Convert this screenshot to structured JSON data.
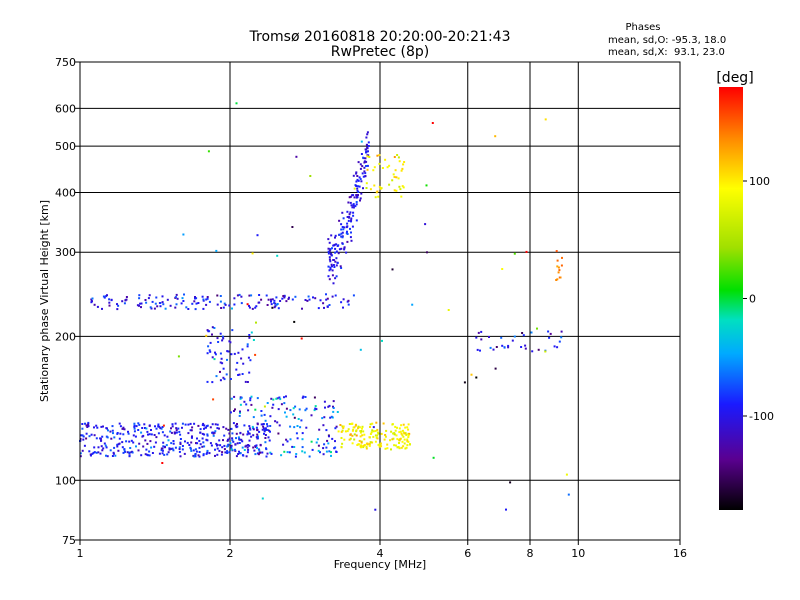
{
  "chart_data": {
    "type": "scatter",
    "title": "Tromsø 20160818 20:20:00-20:21:43",
    "subtitle": "RwPretec (8p)",
    "xlabel": "Frequency [MHz]",
    "ylabel": "Stationary phase Virtual Height [km]",
    "x_scale": "log",
    "y_scale": "log",
    "xlim": [
      1,
      16
    ],
    "ylim": [
      75,
      750
    ],
    "x_ticks": [
      1,
      2,
      4,
      6,
      8,
      10,
      16
    ],
    "x_tick_labels": [
      "1",
      "2",
      "4",
      "6",
      "8",
      "10",
      "16"
    ],
    "y_ticks": [
      75,
      100,
      200,
      300,
      400,
      500,
      600,
      750
    ],
    "y_tick_labels": [
      "75",
      "100",
      "200",
      "300",
      "400",
      "500",
      "600",
      "750"
    ],
    "grid": true,
    "colorbar": {
      "label": "[deg]",
      "range": [
        -180,
        180
      ],
      "ticks": [
        -100,
        0,
        100
      ],
      "tick_labels": [
        "-100",
        "0",
        "100"
      ]
    },
    "phase_stats": {
      "header": "Phases",
      "line1": "mean, sd,O: -95.3, 18.0",
      "line2": "mean, sd,X:  93.1, 23.0"
    },
    "clusters": [
      {
        "name": "lowE-blue",
        "x": [
          1.0,
          2.4
        ],
        "y": [
          112,
          132
        ],
        "phase": -95,
        "spread": 18,
        "count": 420
      },
      {
        "name": "lowE-mixed",
        "x": [
          2.0,
          3.3
        ],
        "y": [
          112,
          150
        ],
        "phase": -85,
        "spread": 35,
        "count": 160
      },
      {
        "name": "lowE-yellow",
        "x": [
          3.3,
          4.6
        ],
        "y": [
          116,
          132
        ],
        "phase": 93,
        "spread": 15,
        "count": 170
      },
      {
        "name": "Es-trace",
        "x": [
          1.05,
          3.6
        ],
        "y": [
          228,
          245
        ],
        "phase": -95,
        "spread": 20,
        "count": 160
      },
      {
        "name": "F-cusp",
        "x": [
          3.15,
          3.8
        ],
        "y": [
          285,
          510
        ],
        "phase": -98,
        "spread": 14,
        "count": 180
      },
      {
        "name": "F-x",
        "x": [
          3.75,
          4.5
        ],
        "y": [
          390,
          480
        ],
        "phase": 95,
        "spread": 15,
        "count": 45
      },
      {
        "name": "mid-scatter",
        "x": [
          1.8,
          2.2
        ],
        "y": [
          160,
          210
        ],
        "phase": -95,
        "spread": 18,
        "count": 60
      },
      {
        "name": "high-freq",
        "x": [
          6.2,
          9.3
        ],
        "y": [
          185,
          205
        ],
        "phase": -105,
        "spread": 30,
        "count": 35
      },
      {
        "name": "high-o-spikes",
        "x": [
          9.0,
          9.3
        ],
        "y": [
          260,
          310
        ],
        "phase": 150,
        "spread": 10,
        "count": 12
      },
      {
        "name": "sparse",
        "x": [
          1.4,
          10.0
        ],
        "y": [
          85,
          620
        ],
        "phase": 20,
        "spread": 110,
        "count": 60
      }
    ]
  }
}
